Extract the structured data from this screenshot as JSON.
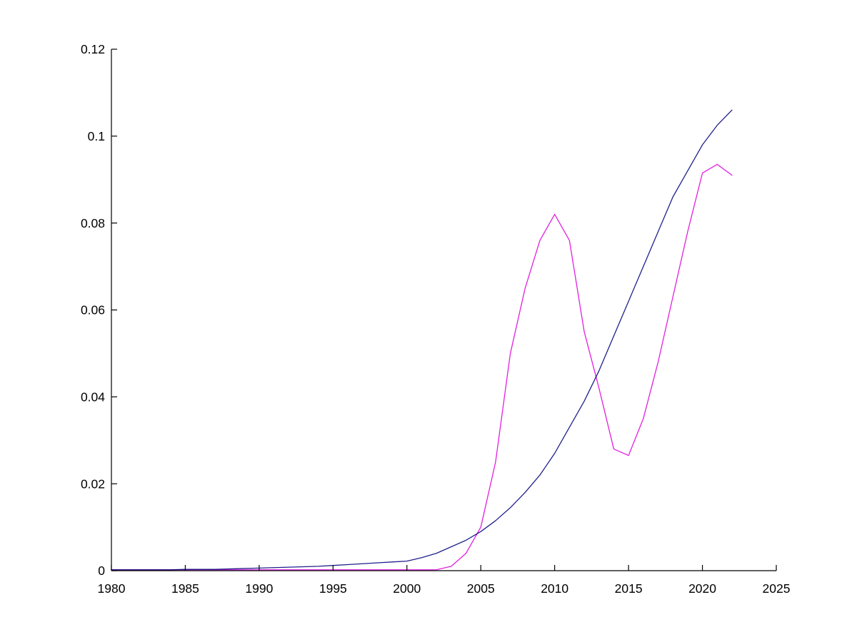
{
  "figure": {
    "background_color": "#ffffff",
    "axis_color": "#000000",
    "title": ""
  },
  "chart_data": {
    "type": "line",
    "title": "",
    "xlabel": "",
    "ylabel": "",
    "xlim": [
      1980,
      2025
    ],
    "ylim": [
      0,
      0.12
    ],
    "grid": false,
    "legend": "none",
    "box": "left-and-bottom-axes-only",
    "x_ticks": [
      1980,
      1985,
      1990,
      1995,
      2000,
      2005,
      2010,
      2015,
      2020,
      2025
    ],
    "x_tick_labels": [
      "1980",
      "1985",
      "1990",
      "1995",
      "2000",
      "2005",
      "2010",
      "2015",
      "2020",
      "2025"
    ],
    "y_ticks": [
      0,
      0.02,
      0.04,
      0.06,
      0.08,
      0.1,
      0.12
    ],
    "y_tick_labels": [
      "0",
      "0.02",
      "0.04",
      "0.06",
      "0.08",
      "0.1",
      "0.12"
    ],
    "x": [
      1980,
      1981,
      1982,
      1983,
      1984,
      1985,
      1986,
      1987,
      1988,
      1989,
      1990,
      1991,
      1992,
      1993,
      1994,
      1995,
      1996,
      1997,
      1998,
      1999,
      2000,
      2001,
      2002,
      2003,
      2004,
      2005,
      2006,
      2007,
      2008,
      2009,
      2010,
      2011,
      2012,
      2013,
      2014,
      2015,
      2016,
      2017,
      2018,
      2019,
      2020,
      2021,
      2022
    ],
    "series": [
      {
        "name": "smooth-dark-blue-curve",
        "color": "#20208c",
        "values": [
          0.0002,
          0.0002,
          0.0002,
          0.0002,
          0.0002,
          0.0003,
          0.0003,
          0.0003,
          0.0004,
          0.0005,
          0.0006,
          0.0007,
          0.0008,
          0.0009,
          0.001,
          0.0012,
          0.0014,
          0.0016,
          0.0018,
          0.002,
          0.0022,
          0.003,
          0.004,
          0.0055,
          0.007,
          0.009,
          0.0115,
          0.0145,
          0.018,
          0.022,
          0.027,
          0.033,
          0.039,
          0.046,
          0.054,
          0.062,
          0.07,
          0.078,
          0.086,
          0.092,
          0.098,
          0.1025,
          0.106
        ]
      },
      {
        "name": "magenta-curve",
        "color": "#e121e1",
        "values": [
          0.0002,
          0.0002,
          0.0002,
          0.0002,
          0.0002,
          0.0002,
          0.0002,
          0.0002,
          0.0002,
          0.0002,
          0.0002,
          0.0002,
          0.0002,
          0.0002,
          0.0002,
          0.0002,
          0.0002,
          0.0002,
          0.0002,
          0.0002,
          0.0002,
          0.0002,
          0.0002,
          0.001,
          0.004,
          0.01,
          0.025,
          0.05,
          0.065,
          0.076,
          0.082,
          0.076,
          0.055,
          0.042,
          0.028,
          0.0265,
          0.035,
          0.048,
          0.063,
          0.078,
          0.0915,
          0.0935,
          0.091
        ]
      }
    ]
  }
}
